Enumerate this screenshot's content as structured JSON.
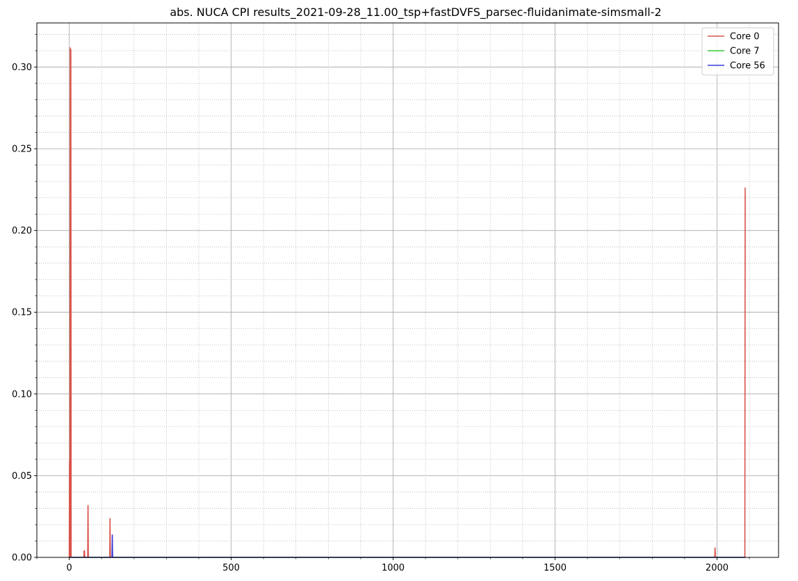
{
  "chart_data": {
    "type": "line",
    "title": "abs. NUCA CPI results_2021-09-28_11.00_tsp+fastDVFS_parsec-fluidanimate-simsmall-2",
    "xlabel": "",
    "ylabel": "",
    "xlim": [
      -100,
      2190
    ],
    "ylim": [
      0,
      0.327
    ],
    "xticks": [
      0,
      500,
      1000,
      1500,
      2000
    ],
    "xtick_labels": [
      "0",
      "500",
      "1000",
      "1500",
      "2000"
    ],
    "yticks": [
      0.0,
      0.05,
      0.1,
      0.15,
      0.2,
      0.25,
      0.3
    ],
    "ytick_labels": [
      "0.00",
      "0.05",
      "0.10",
      "0.15",
      "0.20",
      "0.25",
      "0.30"
    ],
    "x_minor_step": 100,
    "y_minor_step": 0.01,
    "grid": "major solid, minor dotted",
    "legend_position": "top-right",
    "series": [
      {
        "name": "Core 0",
        "color": "#d9534a",
        "points": [
          [
            0,
            0
          ],
          [
            1,
            0.059
          ],
          [
            2,
            0
          ],
          [
            3,
            0.312
          ],
          [
            4,
            0
          ],
          [
            5,
            0.311
          ],
          [
            6,
            0
          ],
          [
            45,
            0
          ],
          [
            46,
            0.004
          ],
          [
            47,
            0.004
          ],
          [
            48,
            0
          ],
          [
            57,
            0
          ],
          [
            58,
            0.032
          ],
          [
            59,
            0
          ],
          [
            125,
            0
          ],
          [
            126,
            0.024
          ],
          [
            127,
            0
          ],
          [
            1993,
            0
          ],
          [
            1994,
            0.006
          ],
          [
            1995,
            0
          ],
          [
            2086,
            0
          ],
          [
            2087,
            0.226
          ],
          [
            2088,
            0.226
          ]
        ]
      },
      {
        "name": "Core 7",
        "color": "#33cc33",
        "points": [
          [
            0,
            0
          ],
          [
            2088,
            0
          ]
        ]
      },
      {
        "name": "Core 56",
        "color": "#3a3ad6",
        "points": [
          [
            0,
            0
          ],
          [
            132,
            0
          ],
          [
            133,
            0.014
          ],
          [
            134,
            0
          ],
          [
            2088,
            0
          ]
        ]
      }
    ]
  }
}
